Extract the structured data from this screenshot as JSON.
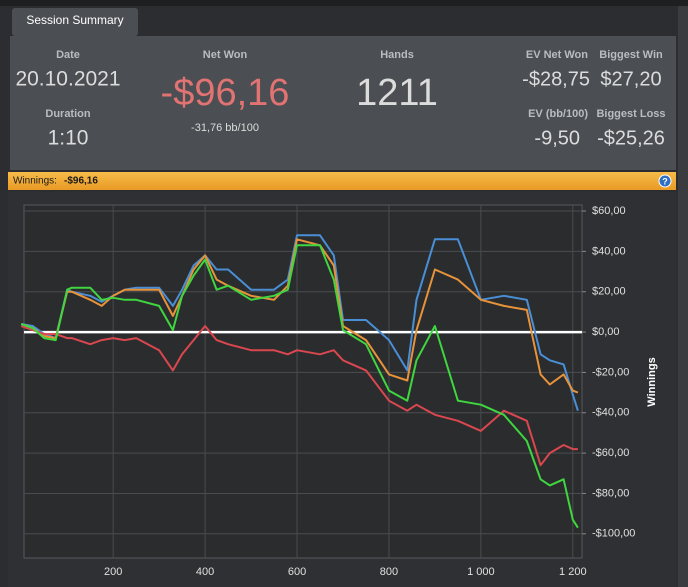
{
  "tab": "Session Summary",
  "stats": {
    "date": {
      "label": "Date",
      "value": "20.10.2021"
    },
    "duration": {
      "label": "Duration",
      "value": "1:10"
    },
    "net_won": {
      "label": "Net Won",
      "value": "-$96,16",
      "sub": "-31,76 bb/100"
    },
    "hands": {
      "label": "Hands",
      "value": "1211"
    },
    "ev_net_won": {
      "label": "EV Net Won",
      "value": "-$28,75"
    },
    "biggest_win": {
      "label": "Biggest Win",
      "value": "$27,20"
    },
    "ev_bb": {
      "label": "EV (bb/100)",
      "value": "-9,50"
    },
    "biggest_loss": {
      "label": "Biggest Loss",
      "value": "-$25,26"
    }
  },
  "winnings_bar": {
    "label": "Winnings:",
    "value": "-$96,16"
  },
  "chart_data": {
    "type": "line",
    "y_label": "Winnings",
    "x": [
      0,
      25,
      50,
      75,
      100,
      110,
      150,
      175,
      200,
      225,
      250,
      300,
      330,
      350,
      375,
      400,
      425,
      450,
      500,
      550,
      580,
      600,
      650,
      680,
      700,
      750,
      800,
      840,
      860,
      900,
      950,
      1000,
      1050,
      1100,
      1130,
      1150,
      1180,
      1200,
      1211
    ],
    "series": [
      {
        "color": "#4a8fd6",
        "values": [
          4,
          3,
          -1,
          -3,
          21,
          20,
          18,
          15,
          18,
          21,
          22,
          22,
          13,
          21,
          33,
          38,
          31,
          31,
          21,
          21,
          26,
          48,
          48,
          38,
          6,
          6,
          -4,
          -19,
          16,
          46,
          46,
          16,
          18,
          16,
          -11,
          -14,
          -16,
          -31,
          -39
        ]
      },
      {
        "color": "#e8923a",
        "values": [
          4,
          2,
          -2,
          -3,
          20,
          20,
          16,
          13,
          18,
          21,
          21,
          21,
          8,
          18,
          31,
          38,
          26,
          23,
          18,
          16,
          23,
          46,
          43,
          33,
          3,
          -4,
          -21,
          -24,
          1,
          31,
          26,
          16,
          13,
          11,
          -21,
          -26,
          -21,
          -29,
          -30
        ]
      },
      {
        "color": "#d9474f",
        "values": [
          3,
          1,
          -1,
          -1,
          -3,
          -3,
          -6,
          -4,
          -3,
          -4,
          -3,
          -9,
          -19,
          -11,
          -4,
          3,
          -4,
          -6,
          -9,
          -9,
          -11,
          -9,
          -11,
          -9,
          -14,
          -19,
          -34,
          -39,
          -36,
          -41,
          -44,
          -49,
          -39,
          -44,
          -66,
          -60,
          -56,
          -58,
          -58
        ]
      },
      {
        "color": "#3fd63f",
        "values": [
          4,
          2,
          -3,
          -4,
          21,
          22,
          22,
          16,
          17,
          16,
          16,
          13,
          1,
          18,
          28,
          36,
          21,
          23,
          16,
          18,
          21,
          43,
          43,
          26,
          1,
          -6,
          -29,
          -34,
          -14,
          3,
          -34,
          -36,
          -41,
          -54,
          -73,
          -76,
          -73,
          -93,
          -97
        ]
      }
    ],
    "xlim": [
      6,
      1220
    ],
    "ylim": [
      -112,
      63
    ],
    "xticks": [
      200,
      400,
      600,
      800,
      {
        "value": 1000,
        "label": "1 000"
      },
      {
        "value": 1200,
        "label": "1 200"
      }
    ],
    "yticks": [
      {
        "value": -100,
        "label": "-$100,00"
      },
      {
        "value": -80,
        "label": "-$80,00"
      },
      {
        "value": -60,
        "label": "-$60,00"
      },
      {
        "value": -40,
        "label": "-$40,00"
      },
      {
        "value": -20,
        "label": "-$20,00"
      },
      {
        "value": 0,
        "label": "$0,00"
      },
      {
        "value": 20,
        "label": "$20,00"
      },
      {
        "value": 40,
        "label": "$40,00"
      },
      {
        "value": 60,
        "label": "$60,00"
      }
    ],
    "grid": true,
    "zero_line": true,
    "y_axis_side": "right"
  }
}
